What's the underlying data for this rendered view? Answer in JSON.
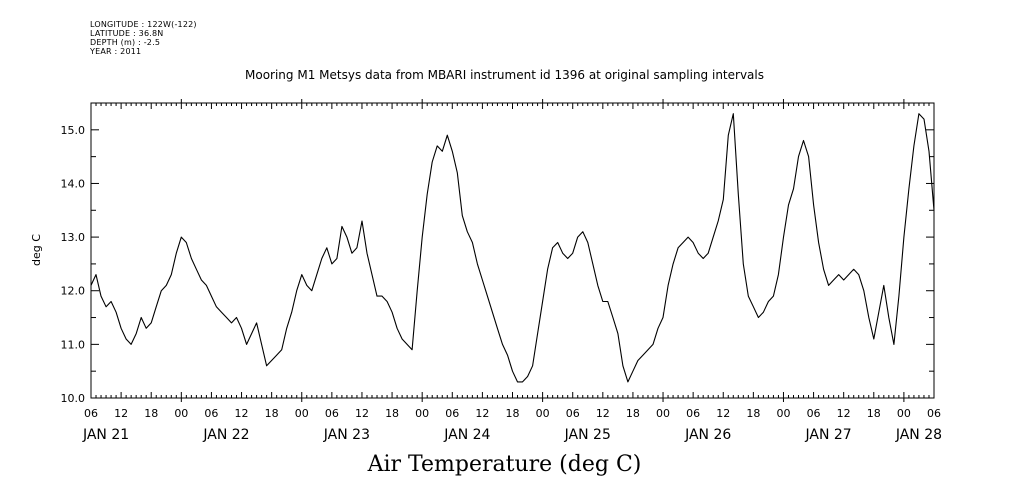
{
  "header": {
    "meta": [
      "LONGITUDE : 122W(-122)",
      "LATITUDE : 36.8N",
      "DEPTH (m) : -2.5",
      "YEAR : 2011"
    ],
    "title": "Mooring M1 Metsys data from MBARI instrument id 1396 at original sampling intervals"
  },
  "chart_data": {
    "type": "line",
    "title": "Mooring M1 Metsys data from MBARI instrument id 1396 at original sampling intervals",
    "xlabel": "Air Temperature (deg C)",
    "ylabel": "deg C",
    "x_unit": "hours since JAN 21 00:00, 2011",
    "xlim": [
      6,
      174
    ],
    "ylim": [
      10.0,
      15.5
    ],
    "y_ticks": [
      "10.0",
      "11.0",
      "12.0",
      "13.0",
      "14.0",
      "15.0"
    ],
    "x_ticks": [
      "06",
      "12",
      "18",
      "00",
      "06",
      "12",
      "18",
      "00",
      "06",
      "12",
      "18",
      "00",
      "06",
      "12",
      "18",
      "00",
      "06",
      "12",
      "18",
      "00",
      "06",
      "12",
      "18",
      "00",
      "06",
      "12",
      "18",
      "00",
      "06"
    ],
    "day_labels": [
      "JAN 21",
      "JAN 22",
      "JAN 23",
      "JAN 24",
      "JAN 25",
      "JAN 26",
      "JAN 27",
      "JAN 28"
    ],
    "day_label_hours": [
      9,
      33,
      57,
      81,
      105,
      129,
      153,
      171
    ],
    "series": [
      {
        "points": [
          [
            6,
            12.1
          ],
          [
            7,
            12.3
          ],
          [
            8,
            11.9
          ],
          [
            9,
            11.7
          ],
          [
            10,
            11.8
          ],
          [
            11,
            11.6
          ],
          [
            12,
            11.3
          ],
          [
            13,
            11.1
          ],
          [
            14,
            11.0
          ],
          [
            15,
            11.2
          ],
          [
            16,
            11.5
          ],
          [
            17,
            11.3
          ],
          [
            18,
            11.4
          ],
          [
            19,
            11.7
          ],
          [
            20,
            12.0
          ],
          [
            21,
            12.1
          ],
          [
            22,
            12.3
          ],
          [
            23,
            12.7
          ],
          [
            24,
            13.0
          ],
          [
            25,
            12.9
          ],
          [
            26,
            12.6
          ],
          [
            27,
            12.4
          ],
          [
            28,
            12.2
          ],
          [
            29,
            12.1
          ],
          [
            30,
            11.9
          ],
          [
            31,
            11.7
          ],
          [
            32,
            11.6
          ],
          [
            33,
            11.5
          ],
          [
            34,
            11.4
          ],
          [
            35,
            11.5
          ],
          [
            36,
            11.3
          ],
          [
            37,
            11.0
          ],
          [
            38,
            11.2
          ],
          [
            39,
            11.4
          ],
          [
            40,
            11.0
          ],
          [
            41,
            10.6
          ],
          [
            42,
            10.7
          ],
          [
            43,
            10.8
          ],
          [
            44,
            10.9
          ],
          [
            45,
            11.3
          ],
          [
            46,
            11.6
          ],
          [
            47,
            12.0
          ],
          [
            48,
            12.3
          ],
          [
            49,
            12.1
          ],
          [
            50,
            12.0
          ],
          [
            51,
            12.3
          ],
          [
            52,
            12.6
          ],
          [
            53,
            12.8
          ],
          [
            54,
            12.5
          ],
          [
            55,
            12.6
          ],
          [
            56,
            13.2
          ],
          [
            57,
            13.0
          ],
          [
            58,
            12.7
          ],
          [
            59,
            12.8
          ],
          [
            60,
            13.3
          ],
          [
            61,
            12.7
          ],
          [
            62,
            12.3
          ],
          [
            63,
            11.9
          ],
          [
            64,
            11.9
          ],
          [
            65,
            11.8
          ],
          [
            66,
            11.6
          ],
          [
            67,
            11.3
          ],
          [
            68,
            11.1
          ],
          [
            69,
            11.0
          ],
          [
            70,
            10.9
          ],
          [
            71,
            12.0
          ],
          [
            72,
            13.0
          ],
          [
            73,
            13.8
          ],
          [
            74,
            14.4
          ],
          [
            75,
            14.7
          ],
          [
            76,
            14.6
          ],
          [
            77,
            14.9
          ],
          [
            78,
            14.6
          ],
          [
            79,
            14.2
          ],
          [
            80,
            13.4
          ],
          [
            81,
            13.1
          ],
          [
            82,
            12.9
          ],
          [
            83,
            12.5
          ],
          [
            84,
            12.2
          ],
          [
            85,
            11.9
          ],
          [
            86,
            11.6
          ],
          [
            87,
            11.3
          ],
          [
            88,
            11.0
          ],
          [
            89,
            10.8
          ],
          [
            90,
            10.5
          ],
          [
            91,
            10.3
          ],
          [
            92,
            10.3
          ],
          [
            93,
            10.4
          ],
          [
            94,
            10.6
          ],
          [
            95,
            11.2
          ],
          [
            96,
            11.8
          ],
          [
            97,
            12.4
          ],
          [
            98,
            12.8
          ],
          [
            99,
            12.9
          ],
          [
            100,
            12.7
          ],
          [
            101,
            12.6
          ],
          [
            102,
            12.7
          ],
          [
            103,
            13.0
          ],
          [
            104,
            13.1
          ],
          [
            105,
            12.9
          ],
          [
            106,
            12.5
          ],
          [
            107,
            12.1
          ],
          [
            108,
            11.8
          ],
          [
            109,
            11.8
          ],
          [
            110,
            11.5
          ],
          [
            111,
            11.2
          ],
          [
            112,
            10.6
          ],
          [
            113,
            10.3
          ],
          [
            114,
            10.5
          ],
          [
            115,
            10.7
          ],
          [
            116,
            10.8
          ],
          [
            117,
            10.9
          ],
          [
            118,
            11.0
          ],
          [
            119,
            11.3
          ],
          [
            120,
            11.5
          ],
          [
            121,
            12.1
          ],
          [
            122,
            12.5
          ],
          [
            123,
            12.8
          ],
          [
            124,
            12.9
          ],
          [
            125,
            13.0
          ],
          [
            126,
            12.9
          ],
          [
            127,
            12.7
          ],
          [
            128,
            12.6
          ],
          [
            129,
            12.7
          ],
          [
            130,
            13.0
          ],
          [
            131,
            13.3
          ],
          [
            132,
            13.7
          ],
          [
            133,
            14.9
          ],
          [
            134,
            15.3
          ],
          [
            135,
            13.8
          ],
          [
            136,
            12.5
          ],
          [
            137,
            11.9
          ],
          [
            138,
            11.7
          ],
          [
            139,
            11.5
          ],
          [
            140,
            11.6
          ],
          [
            141,
            11.8
          ],
          [
            142,
            11.9
          ],
          [
            143,
            12.3
          ],
          [
            144,
            13.0
          ],
          [
            145,
            13.6
          ],
          [
            146,
            13.9
          ],
          [
            147,
            14.5
          ],
          [
            148,
            14.8
          ],
          [
            149,
            14.5
          ],
          [
            150,
            13.6
          ],
          [
            151,
            12.9
          ],
          [
            152,
            12.4
          ],
          [
            153,
            12.1
          ],
          [
            154,
            12.2
          ],
          [
            155,
            12.3
          ],
          [
            156,
            12.2
          ],
          [
            157,
            12.3
          ],
          [
            158,
            12.4
          ],
          [
            159,
            12.3
          ],
          [
            160,
            12.0
          ],
          [
            161,
            11.5
          ],
          [
            162,
            11.1
          ],
          [
            163,
            11.6
          ],
          [
            164,
            12.1
          ],
          [
            165,
            11.5
          ],
          [
            166,
            11.0
          ],
          [
            167,
            11.9
          ],
          [
            168,
            13.0
          ],
          [
            169,
            13.9
          ],
          [
            170,
            14.7
          ],
          [
            171,
            15.3
          ],
          [
            172,
            15.2
          ],
          [
            173,
            14.6
          ],
          [
            174,
            13.5
          ]
        ]
      }
    ],
    "grid": false
  }
}
